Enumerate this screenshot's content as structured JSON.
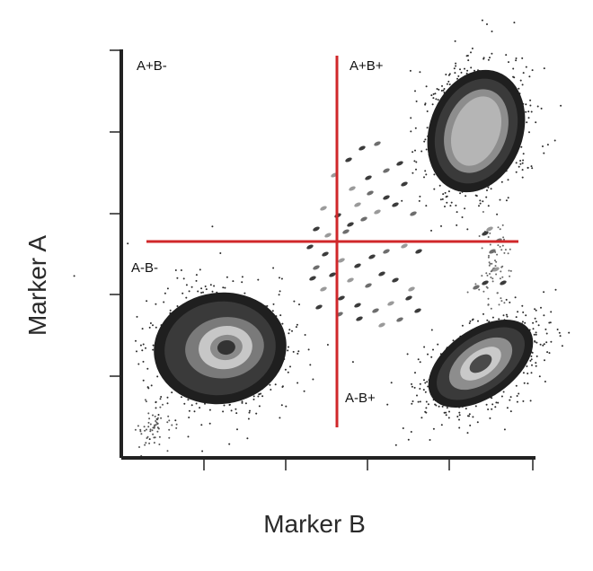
{
  "axes": {
    "x_label": "Marker B",
    "y_label": "Marker A"
  },
  "quadrants": {
    "top_left": "A+B-",
    "top_right": "A+B+",
    "bottom_left": "A-B-",
    "bottom_right": "A-B+"
  },
  "colors": {
    "gate_line": "#d0272a",
    "axis": "#222222"
  }
}
